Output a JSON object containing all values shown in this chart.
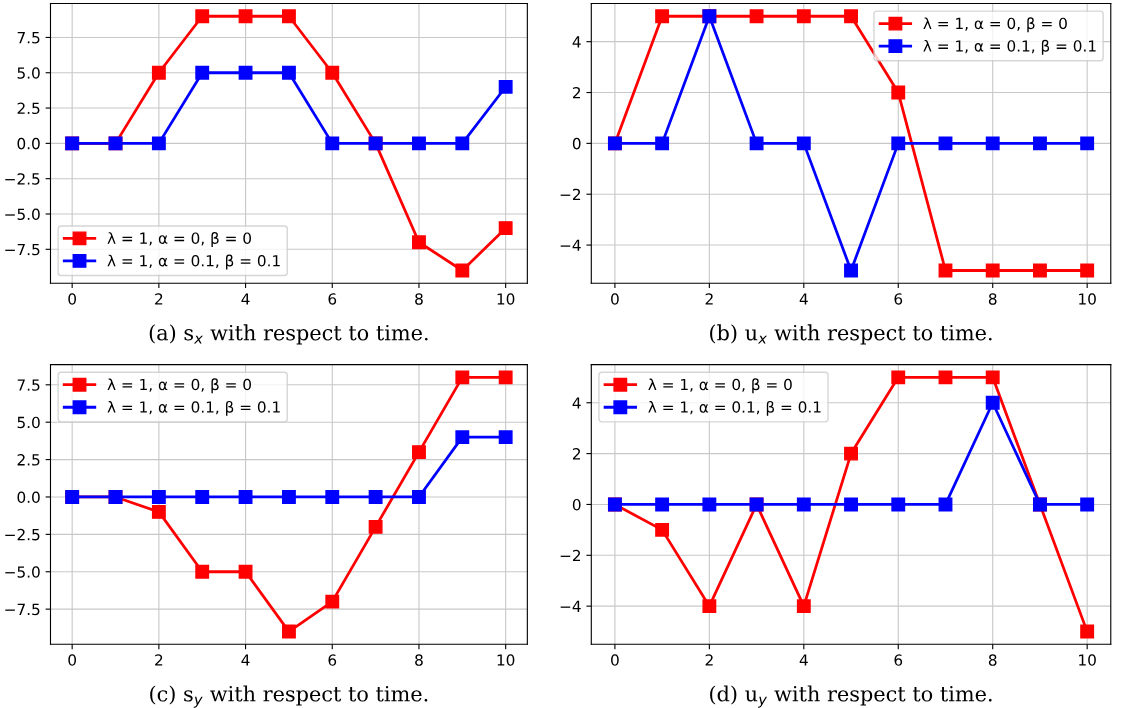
{
  "chart_data": [
    {
      "type": "line",
      "xlabel": "(a) s$_{x}$ with respect to time.",
      "x": [
        0,
        1,
        2,
        3,
        4,
        5,
        6,
        7,
        8,
        9,
        10
      ],
      "xlim": [
        -0.5,
        10.5
      ],
      "xticks": [
        0,
        2,
        4,
        6,
        8,
        10
      ],
      "ylim": [
        -9.9,
        9.9
      ],
      "yticks": [
        {
          "value": -7.5,
          "label": "−7.5"
        },
        {
          "value": -5,
          "label": "−5.0"
        },
        {
          "value": -2.5,
          "label": "−2.5"
        },
        {
          "value": 0,
          "label": "0.0"
        },
        {
          "value": 2.5,
          "label": "2.5"
        },
        {
          "value": 5,
          "label": "5.0"
        },
        {
          "value": 7.5,
          "label": "7.5"
        }
      ],
      "grid": true,
      "legend": "bottom left",
      "marker": "square",
      "line_style": "solid",
      "series": [
        {
          "name": "λ = 1, α = 0, β = 0",
          "color": "#ff0000",
          "values": [
            0,
            0,
            5,
            9,
            9,
            9,
            5,
            0,
            -7,
            -9,
            -6
          ]
        },
        {
          "name": "λ = 1, α = 0.1, β = 0.1",
          "color": "#0000ff",
          "values": [
            0,
            0,
            0,
            5,
            5,
            5,
            0,
            0,
            0,
            0,
            4
          ]
        }
      ]
    },
    {
      "type": "line",
      "xlabel": "(b) u$_{x}$ with respect to time.",
      "x": [
        0,
        1,
        2,
        3,
        4,
        5,
        6,
        7,
        8,
        9,
        10
      ],
      "xlim": [
        -0.5,
        10.5
      ],
      "xticks": [
        0,
        2,
        4,
        6,
        8,
        10
      ],
      "ylim": [
        -5.5,
        5.5
      ],
      "yticks": [
        {
          "value": -4,
          "label": "−4"
        },
        {
          "value": -2,
          "label": "−2"
        },
        0,
        2,
        4
      ],
      "grid": true,
      "legend": "top right",
      "marker": "square",
      "line_style": "solid",
      "series": [
        {
          "name": "λ = 1, α = 0, β = 0",
          "color": "#ff0000",
          "values": [
            0,
            5,
            5,
            5,
            5,
            5,
            2,
            -5,
            -5,
            -5,
            -5
          ]
        },
        {
          "name": "λ = 1, α = 0.1, β = 0.1",
          "color": "#0000ff",
          "values": [
            0,
            0,
            5,
            0,
            0,
            -5,
            0,
            0,
            0,
            0,
            0
          ]
        }
      ]
    },
    {
      "type": "line",
      "xlabel": "(c) s$_{y}$ with respect to time.",
      "x": [
        0,
        1,
        2,
        3,
        4,
        5,
        6,
        7,
        8,
        9,
        10
      ],
      "xlim": [
        -0.5,
        10.5
      ],
      "xticks": [
        0,
        2,
        4,
        6,
        8,
        10
      ],
      "ylim": [
        -9.85,
        8.85
      ],
      "yticks": [
        {
          "value": -7.5,
          "label": "−7.5"
        },
        {
          "value": -5,
          "label": "−5.0"
        },
        {
          "value": -2.5,
          "label": "−2.5"
        },
        {
          "value": 0,
          "label": "0.0"
        },
        {
          "value": 2.5,
          "label": "2.5"
        },
        {
          "value": 5,
          "label": "5.0"
        },
        {
          "value": 7.5,
          "label": "7.5"
        }
      ],
      "grid": true,
      "legend": "top left",
      "marker": "square",
      "line_style": "solid",
      "series": [
        {
          "name": "λ = 1, α = 0, β = 0",
          "color": "#ff0000",
          "values": [
            0,
            0,
            -1,
            -5,
            -5,
            -9,
            -7,
            -2,
            3,
            8,
            8
          ]
        },
        {
          "name": "λ = 1, α = 0.1, β = 0.1",
          "color": "#0000ff",
          "values": [
            0,
            0,
            0,
            0,
            0,
            0,
            0,
            0,
            0,
            4,
            4
          ]
        }
      ]
    },
    {
      "type": "line",
      "xlabel": "(d) u$_{y}$ with respect to time.",
      "x": [
        0,
        1,
        2,
        3,
        4,
        5,
        6,
        7,
        8,
        9,
        10
      ],
      "xlim": [
        -0.5,
        10.5
      ],
      "xticks": [
        0,
        2,
        4,
        6,
        8,
        10
      ],
      "ylim": [
        -5.5,
        5.5
      ],
      "yticks": [
        {
          "value": -4,
          "label": "−4"
        },
        {
          "value": -2,
          "label": "−2"
        },
        0,
        2,
        4
      ],
      "grid": true,
      "legend": "top left",
      "marker": "square",
      "line_style": "solid",
      "series": [
        {
          "name": "λ = 1, α = 0, β = 0",
          "color": "#ff0000",
          "values": [
            0,
            -1,
            -4,
            0,
            -4,
            2,
            5,
            5,
            5,
            0,
            -5
          ]
        },
        {
          "name": "λ = 1, α = 0.1, β = 0.1",
          "color": "#0000ff",
          "values": [
            0,
            0,
            0,
            0,
            0,
            0,
            0,
            0,
            4,
            0,
            0
          ]
        }
      ]
    }
  ]
}
